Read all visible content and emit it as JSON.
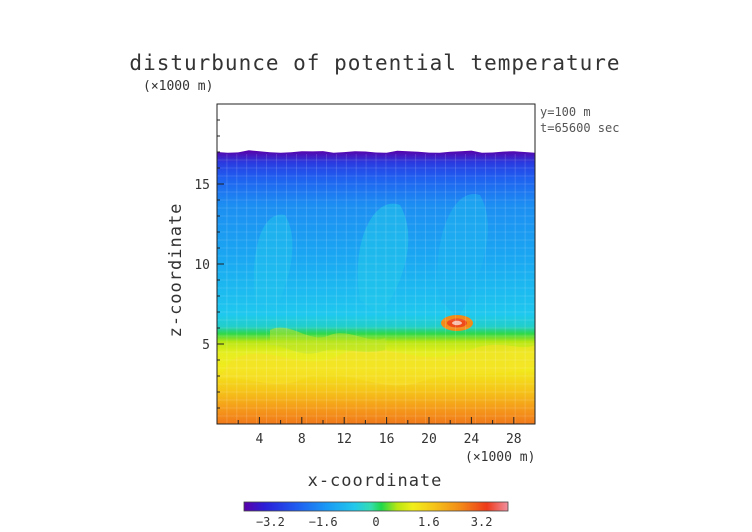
{
  "chart_data": {
    "type": "heatmap",
    "title": "disturbunce of potential temperature",
    "xlabel": "x-coordinate",
    "ylabel": "z-coordinate",
    "x_unit": "(×1000 m)",
    "y_unit": "(×1000 m)",
    "xlim": [
      0,
      30
    ],
    "ylim": [
      0,
      20
    ],
    "x_ticks": [
      "4",
      "8",
      "12",
      "16",
      "20",
      "24",
      "28"
    ],
    "y_ticks": [
      "5",
      "10",
      "15"
    ],
    "annotations": [
      "y=100 m",
      "t=65600 sec"
    ],
    "colorbar": {
      "range": [
        -4,
        4
      ],
      "ticks": [
        "−3.2",
        "−1.6",
        "0",
        "1.6",
        "3.2"
      ],
      "colors": [
        "#5a00a8",
        "#2a1fd8",
        "#1f5cf0",
        "#1a9cf5",
        "#22c8ea",
        "#33ddb0",
        "#1fd84a",
        "#b8e612",
        "#f2ee1a",
        "#f5c419",
        "#f28a18",
        "#ee3a1a",
        "#f08fa0"
      ]
    },
    "field_bands": [
      {
        "z_range": [
          0,
          1.2
        ],
        "value": 2.6
      },
      {
        "z_range": [
          1.2,
          4.5
        ],
        "value": 1.7
      },
      {
        "z_range": [
          4.5,
          5.5
        ],
        "value": 1.2
      },
      {
        "z_range": [
          5.5,
          6.8
        ],
        "value": 0.1
      },
      {
        "z_range": [
          6.8,
          16.5
        ],
        "value": -1.1
      },
      {
        "z_range": [
          16.5,
          17.0
        ],
        "value": -2.6
      }
    ],
    "domain_top_z": 17.0
  }
}
